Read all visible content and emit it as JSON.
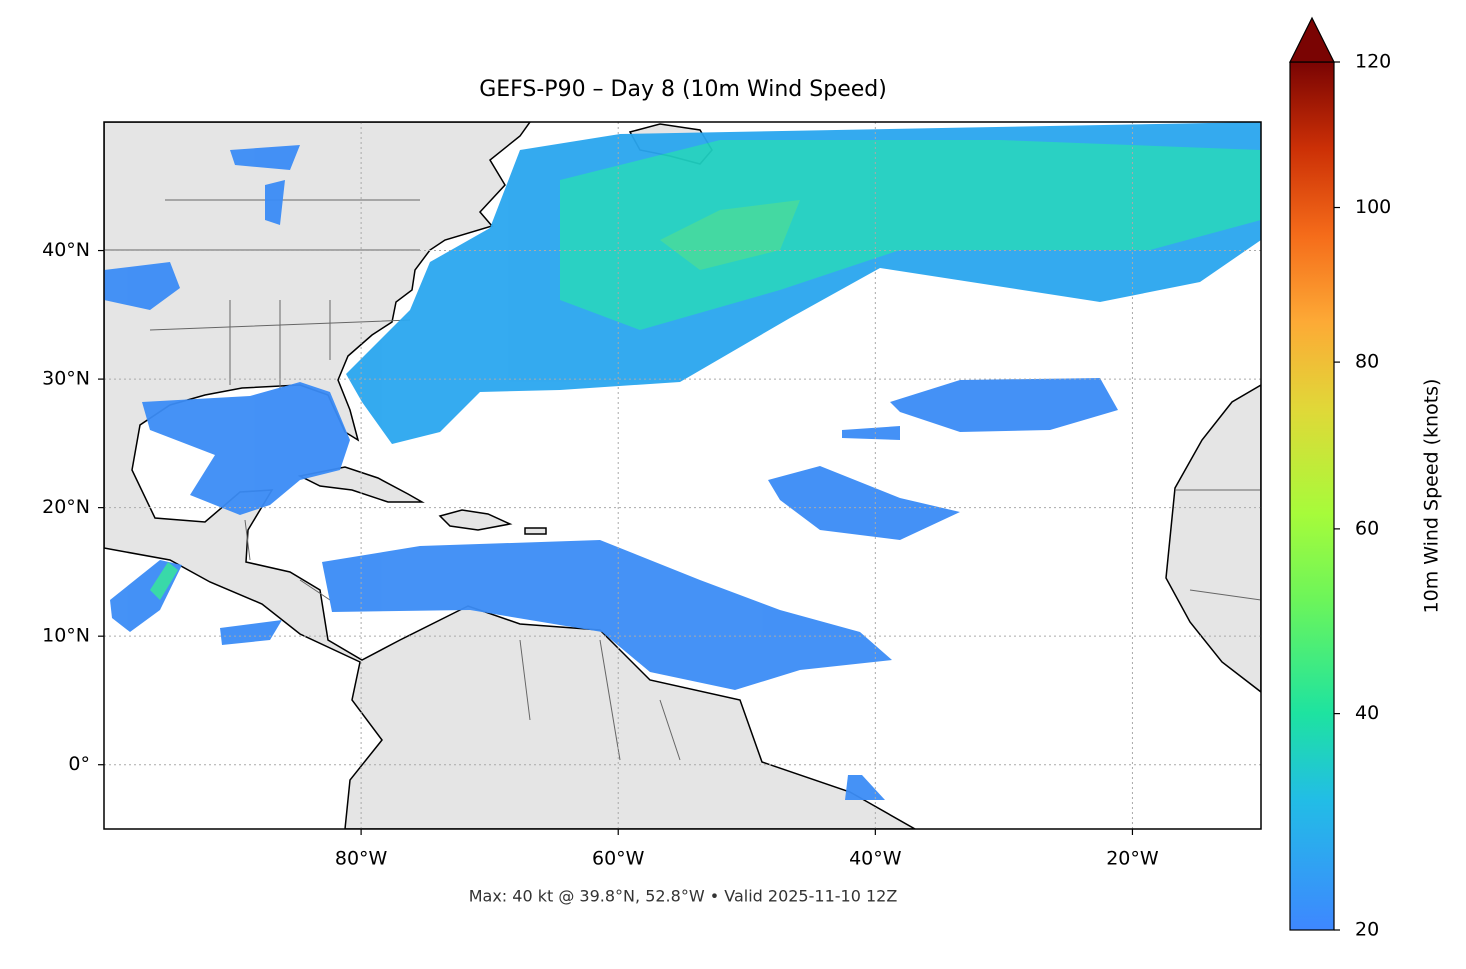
{
  "title": "GEFS-P90 – Day 8 (10m Wind Speed)",
  "subtitle": "Max: 40 kt @ 39.8°N, 52.8°W • Valid 2025-11-10 12Z",
  "map": {
    "xlim": [
      -100,
      -10
    ],
    "ylim": [
      -5,
      50
    ],
    "xticks": [
      {
        "value": -80,
        "label": "80°W"
      },
      {
        "value": -60,
        "label": "60°W"
      },
      {
        "value": -40,
        "label": "40°W"
      },
      {
        "value": -20,
        "label": "20°W"
      }
    ],
    "yticks": [
      {
        "value": 0,
        "label": "0°"
      },
      {
        "value": 10,
        "label": "10°N"
      },
      {
        "value": 20,
        "label": "20°N"
      },
      {
        "value": 30,
        "label": "30°N"
      },
      {
        "value": 40,
        "label": "40°N"
      }
    ],
    "grid": true
  },
  "colorbar": {
    "label": "10m Wind Speed (knots)",
    "lim": [
      20,
      120
    ],
    "ticks": [
      20,
      40,
      60,
      80,
      100,
      120
    ],
    "power_norm": 0.7,
    "extend": "max"
  }
}
